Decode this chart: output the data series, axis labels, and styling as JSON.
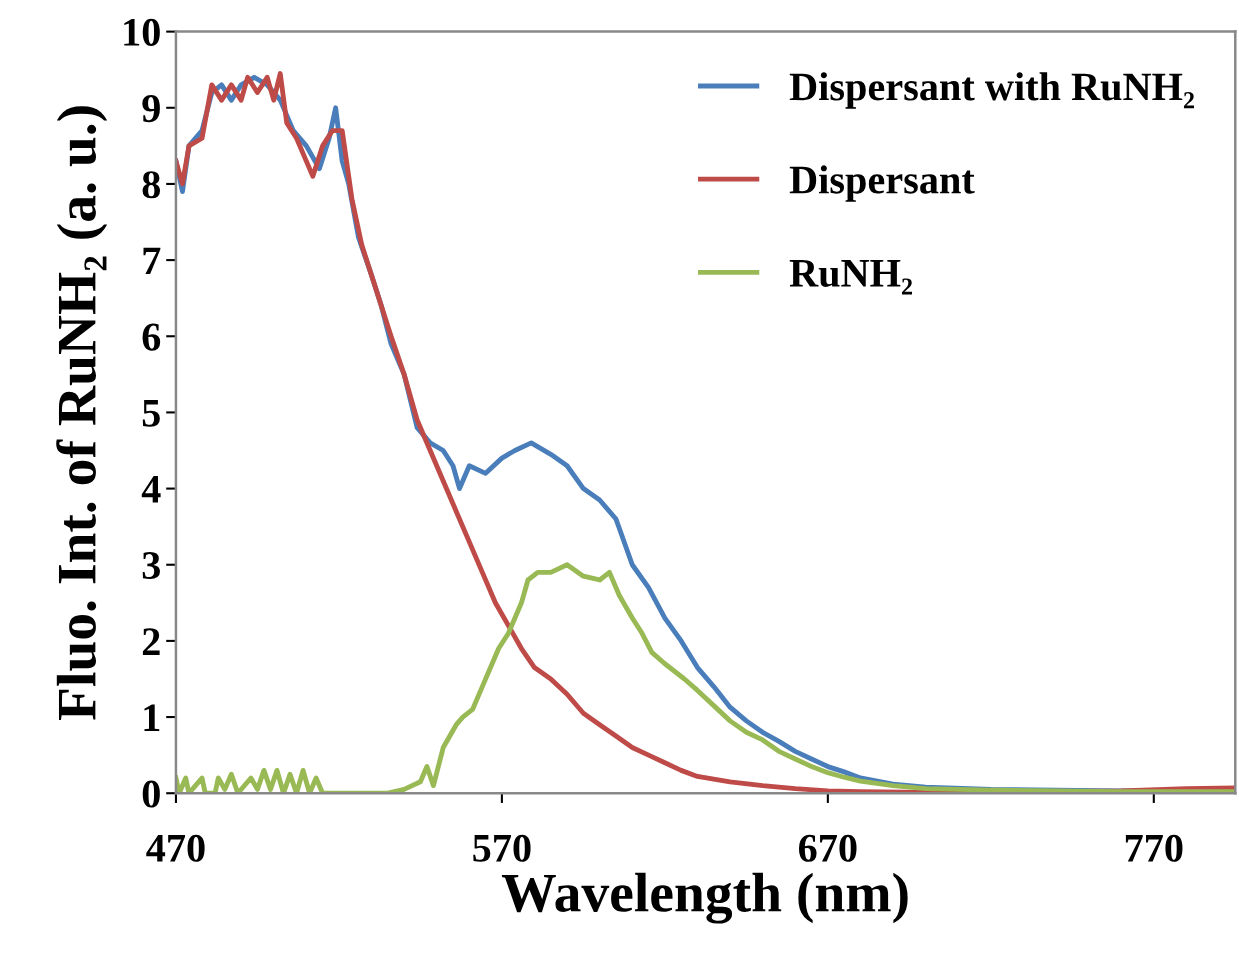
{
  "chart_data": {
    "type": "line",
    "xlabel": "Wavelength (nm)",
    "ylabel": "Fluo. Int. of RuNH₂ (a. u.)",
    "xlim": [
      470,
      795
    ],
    "xticks": [
      470,
      570,
      670,
      770
    ],
    "ylim": [
      0,
      10
    ],
    "yticks": [
      0,
      1,
      2,
      3,
      4,
      5,
      6,
      7,
      8,
      9,
      10
    ],
    "grid": false,
    "legend": "top right",
    "marker": "none",
    "line_style": "solid",
    "series": [
      {
        "name": "Dispersant with RuNH₂",
        "color": "#4a7ebb",
        "x": [
          470,
          472,
          474,
          478,
          481,
          484,
          487,
          490,
          494,
          498,
          502,
          506,
          510,
          514,
          517,
          519,
          521,
          523,
          526,
          530,
          533,
          536,
          540,
          544,
          548,
          552,
          555,
          557,
          560,
          565,
          570,
          574,
          579,
          585,
          590,
          595,
          600,
          605,
          610,
          615,
          620,
          625,
          630,
          635,
          640,
          645,
          650,
          655,
          660,
          665,
          670,
          675,
          680,
          690,
          700,
          720,
          740,
          760,
          780,
          795
        ],
        "values": [
          8.3,
          7.9,
          8.5,
          8.7,
          9.2,
          9.3,
          9.1,
          9.3,
          9.4,
          9.3,
          9.1,
          8.7,
          8.5,
          8.2,
          8.6,
          9.0,
          8.3,
          8.0,
          7.3,
          6.8,
          6.4,
          5.9,
          5.5,
          4.8,
          4.6,
          4.5,
          4.3,
          4.0,
          4.3,
          4.2,
          4.4,
          4.5,
          4.6,
          4.45,
          4.3,
          4.0,
          3.85,
          3.6,
          3.0,
          2.7,
          2.3,
          2.0,
          1.65,
          1.4,
          1.13,
          0.95,
          0.8,
          0.68,
          0.55,
          0.45,
          0.35,
          0.28,
          0.2,
          0.12,
          0.08,
          0.05,
          0.04,
          0.03,
          0.03,
          0.03
        ]
      },
      {
        "name": "Dispersant",
        "color": "#be4b48",
        "x": [
          470,
          472,
          474,
          478,
          481,
          484,
          487,
          490,
          492,
          495,
          498,
          500,
          502,
          504,
          507,
          510,
          512,
          515,
          518,
          521,
          524,
          527,
          530,
          533,
          536,
          540,
          544,
          548,
          552,
          556,
          560,
          564,
          568,
          572,
          576,
          580,
          585,
          590,
          595,
          600,
          605,
          610,
          615,
          620,
          625,
          630,
          640,
          650,
          660,
          670,
          680,
          700,
          720,
          740,
          760,
          780,
          795
        ],
        "values": [
          8.3,
          8.0,
          8.5,
          8.6,
          9.3,
          9.1,
          9.3,
          9.1,
          9.4,
          9.2,
          9.4,
          9.1,
          9.45,
          8.8,
          8.6,
          8.3,
          8.1,
          8.5,
          8.7,
          8.7,
          7.8,
          7.2,
          6.8,
          6.4,
          6.0,
          5.5,
          4.9,
          4.5,
          4.1,
          3.7,
          3.3,
          2.9,
          2.5,
          2.2,
          1.9,
          1.65,
          1.5,
          1.3,
          1.05,
          0.9,
          0.75,
          0.6,
          0.5,
          0.4,
          0.3,
          0.22,
          0.15,
          0.1,
          0.06,
          0.03,
          0.02,
          0.01,
          0.01,
          0.02,
          0.03,
          0.06,
          0.07
        ]
      },
      {
        "name": "RuNH₂",
        "color": "#98b954",
        "x": [
          470,
          471,
          473,
          474,
          476,
          478,
          479,
          482,
          483,
          485,
          487,
          489,
          493,
          495,
          497,
          499,
          501,
          503,
          505,
          507,
          509,
          511,
          513,
          515,
          520,
          530,
          535,
          540,
          545,
          547,
          549,
          552,
          556,
          558,
          561,
          564,
          567,
          569,
          572,
          574,
          576,
          578,
          581,
          585,
          590,
          595,
          600,
          603,
          606,
          610,
          613,
          616,
          620,
          626,
          630,
          635,
          640,
          645,
          650,
          655,
          660,
          665,
          670,
          675,
          680,
          690,
          700,
          720,
          740,
          760,
          780,
          795
        ],
        "values": [
          0.2,
          0,
          0.2,
          0,
          0.1,
          0.2,
          0,
          0,
          0.2,
          0.05,
          0.25,
          0,
          0.2,
          0.05,
          0.3,
          0.05,
          0.3,
          0,
          0.25,
          0,
          0.3,
          0,
          0.2,
          0,
          0,
          0,
          0,
          0.05,
          0.15,
          0.35,
          0.1,
          0.6,
          0.9,
          1.0,
          1.1,
          1.4,
          1.7,
          1.9,
          2.1,
          2.3,
          2.5,
          2.8,
          2.9,
          2.9,
          3.0,
          2.85,
          2.8,
          2.9,
          2.6,
          2.3,
          2.1,
          1.85,
          1.7,
          1.5,
          1.35,
          1.15,
          0.95,
          0.8,
          0.7,
          0.55,
          0.45,
          0.35,
          0.27,
          0.21,
          0.16,
          0.1,
          0.06,
          0.04,
          0.03,
          0.02,
          0.02,
          0.02
        ]
      }
    ]
  }
}
